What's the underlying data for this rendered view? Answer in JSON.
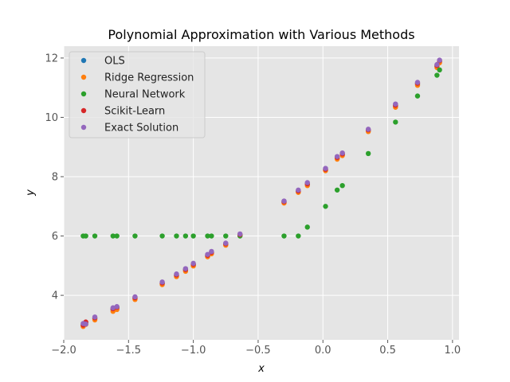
{
  "chart_data": {
    "type": "scatter",
    "title": "Polynomial Approximation with Various Methods",
    "xlabel": "x",
    "ylabel": "y",
    "xlim": [
      -2.0,
      1.05
    ],
    "ylim": [
      2.5,
      12.4
    ],
    "xticks": [
      -2.0,
      -1.5,
      -1.0,
      -0.5,
      0.0,
      0.5,
      1.0
    ],
    "xtick_labels": [
      "−2.0",
      "−1.5",
      "−1.0",
      "−0.5",
      "0.0",
      "0.5",
      "1.0"
    ],
    "yticks": [
      4,
      6,
      8,
      10,
      12
    ],
    "ytick_labels": [
      "4",
      "6",
      "8",
      "10",
      "12"
    ],
    "grid": true,
    "legend_position": "top-left",
    "x": [
      -1.85,
      -1.83,
      -1.76,
      -1.62,
      -1.59,
      -1.45,
      -1.24,
      -1.13,
      -1.06,
      -1.0,
      -0.89,
      -0.86,
      -0.75,
      -0.64,
      -0.3,
      -0.19,
      -0.12,
      0.02,
      0.11,
      0.15,
      0.35,
      0.56,
      0.73,
      0.88,
      0.9
    ],
    "series": [
      {
        "name": "OLS",
        "color": "#1f77b4",
        "values": [
          3.0,
          3.07,
          3.22,
          3.52,
          3.57,
          3.9,
          4.4,
          4.67,
          4.85,
          5.02,
          5.33,
          5.43,
          5.72,
          6.04,
          7.14,
          7.5,
          7.74,
          8.23,
          8.62,
          8.74,
          9.55,
          10.38,
          11.12,
          11.72,
          11.88
        ]
      },
      {
        "name": "Ridge Regression",
        "color": "#ff7f0e",
        "values": [
          2.95,
          3.02,
          3.17,
          3.46,
          3.52,
          3.86,
          4.36,
          4.63,
          4.81,
          4.99,
          5.3,
          5.4,
          5.69,
          6.01,
          7.11,
          7.47,
          7.7,
          8.2,
          8.59,
          8.71,
          9.52,
          10.34,
          11.08,
          11.68,
          11.84
        ]
      },
      {
        "name": "Neural Network",
        "color": "#2ca02c",
        "values": [
          6.0,
          6.0,
          6.0,
          6.0,
          6.0,
          6.0,
          6.0,
          6.0,
          6.0,
          6.0,
          6.0,
          6.0,
          6.0,
          6.0,
          6.0,
          6.0,
          6.3,
          7.0,
          7.55,
          7.7,
          8.78,
          9.84,
          10.72,
          11.42,
          11.6
        ]
      },
      {
        "name": "Scikit-Learn",
        "color": "#d62728",
        "values": [
          3.0,
          3.1,
          3.24,
          3.55,
          3.6,
          3.92,
          4.42,
          4.69,
          4.87,
          5.05,
          5.35,
          5.45,
          5.74,
          6.05,
          7.16,
          7.52,
          7.76,
          8.25,
          8.65,
          8.77,
          9.58,
          10.41,
          11.15,
          11.75,
          11.91
        ]
      },
      {
        "name": "Exact Solution",
        "color": "#9467bd",
        "values": [
          3.05,
          3.03,
          3.27,
          3.58,
          3.62,
          3.95,
          4.45,
          4.72,
          4.9,
          5.08,
          5.38,
          5.48,
          5.76,
          6.07,
          7.18,
          7.55,
          7.8,
          8.28,
          8.68,
          8.8,
          9.6,
          10.45,
          11.18,
          11.78,
          11.93
        ]
      }
    ]
  }
}
